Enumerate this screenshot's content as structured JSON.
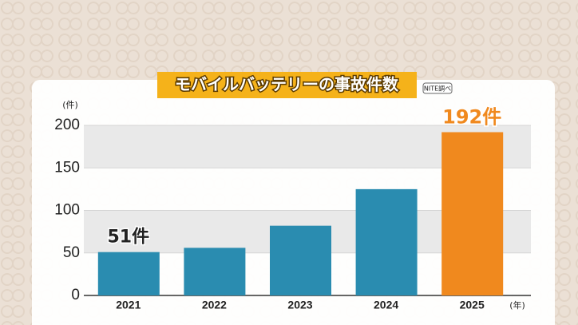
{
  "chart_data": {
    "type": "bar",
    "title": "モバイルバッテリーの事故件数",
    "source": "NITE調べ",
    "y_unit": "(件)",
    "x_unit": "(年)",
    "categories": [
      "2021",
      "2022",
      "2023",
      "2024",
      "2025"
    ],
    "values": [
      51,
      56,
      82,
      125,
      192
    ],
    "value_labels": [
      "51件",
      null,
      null,
      null,
      "192件"
    ],
    "colors": [
      "#2a8cb0",
      "#2a8cb0",
      "#2a8cb0",
      "#2a8cb0",
      "#f0891e"
    ],
    "ylim": [
      0,
      200
    ],
    "yticks": [
      0,
      50,
      100,
      150,
      200
    ],
    "grid": true
  }
}
